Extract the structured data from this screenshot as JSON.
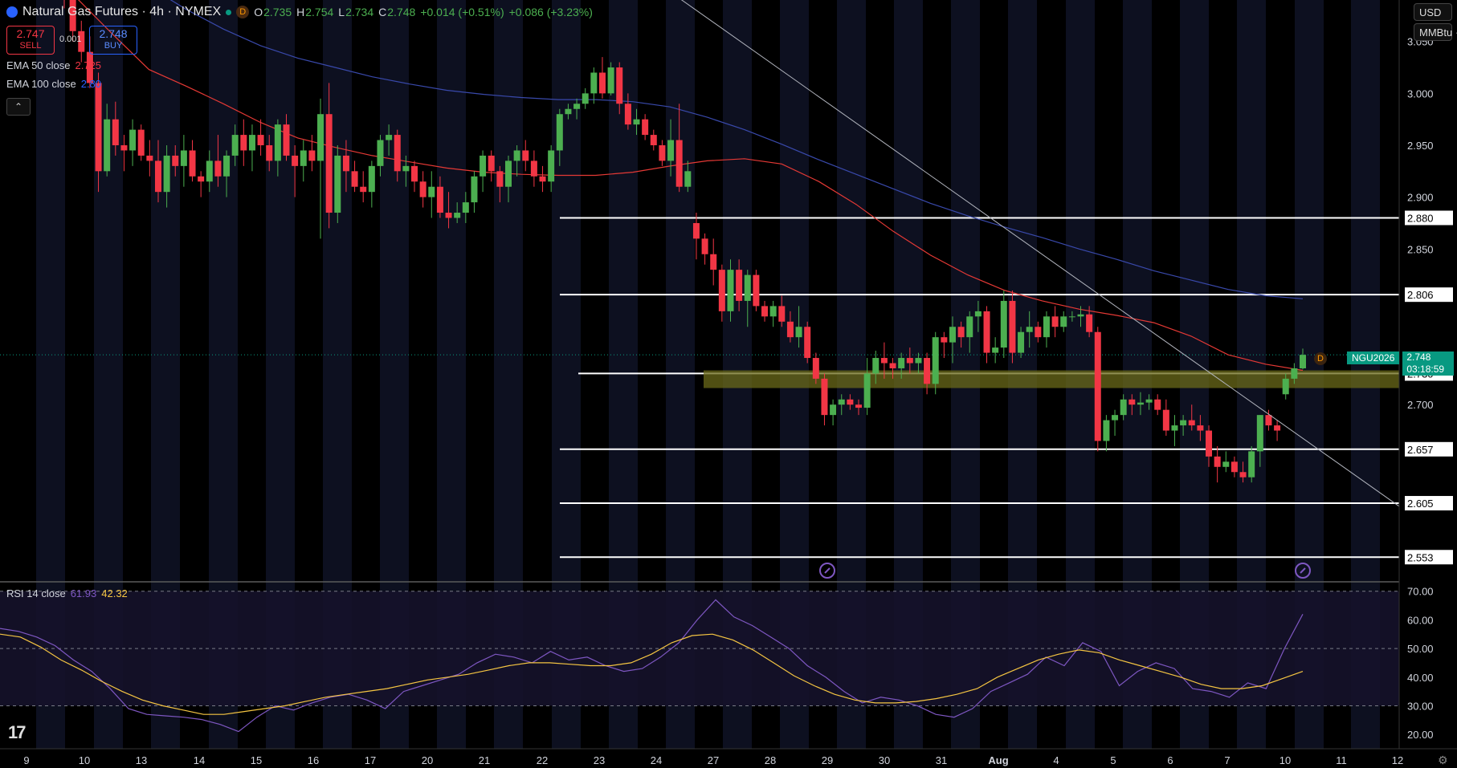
{
  "header": {
    "title": "Natural Gas Futures · 4h · NYMEX",
    "badge": "D",
    "ohlc": {
      "o_label": "O",
      "o": "2.735",
      "h_label": "H",
      "h": "2.754",
      "l_label": "L",
      "l": "2.734",
      "c_label": "C",
      "c": "2.748",
      "change": "+0.014 (+0.51%)",
      "change2": "+0.086 (+3.23%)"
    }
  },
  "trade": {
    "sell_price": "2.747",
    "sell_label": "SELL",
    "spread": "0.001",
    "buy_price": "2.748",
    "buy_label": "BUY"
  },
  "indicators": {
    "ema50_label": "EMA 50 close",
    "ema50_value": "2.725",
    "ema100_label": "EMA 100 close",
    "ema100_value": "2.80",
    "rsi_label": "RSI 14 close",
    "rsi_value": "61.93",
    "rsi_ma_value": "42.32"
  },
  "units": {
    "currency": "USD",
    "unit": "MMBtu"
  },
  "price_tag": {
    "symbol": "NGU2026",
    "price": "2.748",
    "countdown": "03:18:59",
    "marker": "D"
  },
  "colors": {
    "up": "#26a69a",
    "up_body": "#4caf50",
    "down": "#f23645",
    "ema50": "#e53935",
    "ema100": "#3949ab",
    "rsi": "#7e57c2",
    "rsi_ma": "#f5c542",
    "zone": "#6b6a1a"
  },
  "chart_data": [
    {
      "type": "candlestick",
      "title": "Natural Gas Futures · 4h · NYMEX",
      "ylim": [
        2.53,
        3.09
      ],
      "y_ticks": [
        "3.050",
        "3.000",
        "2.950",
        "2.900",
        "2.850",
        "2.700"
      ],
      "x_ticks": [
        "9",
        "10",
        "13",
        "14",
        "15",
        "16",
        "17",
        "20",
        "21",
        "22",
        "23",
        "24",
        "27",
        "28",
        "29",
        "30",
        "31",
        "Aug",
        "4",
        "5",
        "6",
        "7",
        "10",
        "11",
        "12"
      ],
      "horizontal_levels": [
        "2.880",
        "2.806",
        "2.730",
        "2.657",
        "2.605",
        "2.553"
      ],
      "support_zone": [
        2.716,
        2.733
      ],
      "candles": [
        [
          3.125,
          3.14,
          3.082,
          3.095
        ],
        [
          3.095,
          3.105,
          3.05,
          3.06
        ],
        [
          3.06,
          3.07,
          3.03,
          3.04
        ],
        [
          3.04,
          3.055,
          3.005,
          3.01
        ],
        [
          3.01,
          3.02,
          2.905,
          2.925
        ],
        [
          2.925,
          2.99,
          2.92,
          2.975
        ],
        [
          2.975,
          2.992,
          2.94,
          2.95
        ],
        [
          2.95,
          2.96,
          2.925,
          2.945
        ],
        [
          2.945,
          2.975,
          2.93,
          2.965
        ],
        [
          2.965,
          2.97,
          2.935,
          2.94
        ],
        [
          2.94,
          2.955,
          2.92,
          2.935
        ],
        [
          2.935,
          2.955,
          2.895,
          2.905
        ],
        [
          2.905,
          2.95,
          2.89,
          2.94
        ],
        [
          2.94,
          2.95,
          2.92,
          2.93
        ],
        [
          2.93,
          2.96,
          2.91,
          2.945
        ],
        [
          2.945,
          2.955,
          2.915,
          2.92
        ],
        [
          2.92,
          2.925,
          2.9,
          2.915
        ],
        [
          2.915,
          2.945,
          2.905,
          2.935
        ],
        [
          2.935,
          2.96,
          2.91,
          2.92
        ],
        [
          2.92,
          2.945,
          2.9,
          2.94
        ],
        [
          2.94,
          2.97,
          2.93,
          2.96
        ],
        [
          2.96,
          2.975,
          2.93,
          2.945
        ],
        [
          2.945,
          2.97,
          2.925,
          2.96
        ],
        [
          2.96,
          2.975,
          2.94,
          2.95
        ],
        [
          2.95,
          2.96,
          2.925,
          2.935
        ],
        [
          2.935,
          2.975,
          2.92,
          2.97
        ],
        [
          2.97,
          2.98,
          2.935,
          2.94
        ],
        [
          2.94,
          2.95,
          2.9,
          2.93
        ],
        [
          2.93,
          2.955,
          2.915,
          2.945
        ],
        [
          2.945,
          2.96,
          2.925,
          2.935
        ],
        [
          2.935,
          2.995,
          2.86,
          2.98
        ],
        [
          2.98,
          3.01,
          2.87,
          2.885
        ],
        [
          2.885,
          2.95,
          2.875,
          2.94
        ],
        [
          2.94,
          2.955,
          2.905,
          2.925
        ],
        [
          2.925,
          2.935,
          2.905,
          2.91
        ],
        [
          2.91,
          2.925,
          2.895,
          2.905
        ],
        [
          2.905,
          2.935,
          2.89,
          2.93
        ],
        [
          2.93,
          2.96,
          2.92,
          2.955
        ],
        [
          2.955,
          2.97,
          2.94,
          2.96
        ],
        [
          2.96,
          2.965,
          2.915,
          2.925
        ],
        [
          2.925,
          2.94,
          2.91,
          2.93
        ],
        [
          2.93,
          2.935,
          2.905,
          2.915
        ],
        [
          2.915,
          2.925,
          2.89,
          2.9
        ],
        [
          2.9,
          2.925,
          2.88,
          2.91
        ],
        [
          2.91,
          2.92,
          2.88,
          2.885
        ],
        [
          2.885,
          2.905,
          2.87,
          2.88
        ],
        [
          2.88,
          2.895,
          2.875,
          2.885
        ],
        [
          2.885,
          2.905,
          2.875,
          2.895
        ],
        [
          2.895,
          2.925,
          2.885,
          2.92
        ],
        [
          2.92,
          2.945,
          2.905,
          2.94
        ],
        [
          2.94,
          2.945,
          2.915,
          2.925
        ],
        [
          2.925,
          2.93,
          2.895,
          2.91
        ],
        [
          2.91,
          2.94,
          2.895,
          2.935
        ],
        [
          2.935,
          2.95,
          2.92,
          2.945
        ],
        [
          2.945,
          2.955,
          2.925,
          2.935
        ],
        [
          2.935,
          2.945,
          2.91,
          2.92
        ],
        [
          2.92,
          2.93,
          2.905,
          2.915
        ],
        [
          2.915,
          2.95,
          2.905,
          2.945
        ],
        [
          2.945,
          2.985,
          2.93,
          2.98
        ],
        [
          2.98,
          2.99,
          2.975,
          2.985
        ],
        [
          2.985,
          2.995,
          2.975,
          2.99
        ],
        [
          2.99,
          3.005,
          2.985,
          3.0
        ],
        [
          3.0,
          3.025,
          2.99,
          3.02
        ],
        [
          3.02,
          3.035,
          2.995,
          3.0
        ],
        [
          3.0,
          3.03,
          2.998,
          3.025
        ],
        [
          3.025,
          3.03,
          2.98,
          2.99
        ],
        [
          2.99,
          3.0,
          2.965,
          2.97
        ],
        [
          2.97,
          2.985,
          2.96,
          2.975
        ],
        [
          2.975,
          2.98,
          2.955,
          2.96
        ],
        [
          2.96,
          2.965,
          2.945,
          2.95
        ],
        [
          2.95,
          2.955,
          2.93,
          2.935
        ],
        [
          2.935,
          2.975,
          2.92,
          2.955
        ],
        [
          2.955,
          2.99,
          2.905,
          2.91
        ],
        [
          2.91,
          2.935,
          2.905,
          2.925
        ],
        [
          2.875,
          2.885,
          2.84,
          2.86
        ],
        [
          2.86,
          2.865,
          2.835,
          2.845
        ],
        [
          2.845,
          2.86,
          2.815,
          2.83
        ],
        [
          2.83,
          2.835,
          2.78,
          2.79
        ],
        [
          2.79,
          2.84,
          2.78,
          2.83
        ],
        [
          2.83,
          2.84,
          2.79,
          2.8
        ],
        [
          2.8,
          2.83,
          2.775,
          2.825
        ],
        [
          2.825,
          2.83,
          2.79,
          2.795
        ],
        [
          2.795,
          2.8,
          2.78,
          2.785
        ],
        [
          2.785,
          2.8,
          2.775,
          2.795
        ],
        [
          2.795,
          2.805,
          2.775,
          2.78
        ],
        [
          2.78,
          2.79,
          2.76,
          2.765
        ],
        [
          2.765,
          2.795,
          2.755,
          2.775
        ],
        [
          2.775,
          2.78,
          2.74,
          2.745
        ],
        [
          2.745,
          2.75,
          2.72,
          2.725
        ],
        [
          2.725,
          2.73,
          2.68,
          2.69
        ],
        [
          2.69,
          2.705,
          2.68,
          2.7
        ],
        [
          2.7,
          2.71,
          2.69,
          2.705
        ],
        [
          2.705,
          2.71,
          2.695,
          2.7
        ],
        [
          2.7,
          2.705,
          2.69,
          2.697
        ],
        [
          2.697,
          2.745,
          2.69,
          2.73
        ],
        [
          2.73,
          2.752,
          2.72,
          2.745
        ],
        [
          2.745,
          2.76,
          2.725,
          2.74
        ],
        [
          2.74,
          2.745,
          2.725,
          2.735
        ],
        [
          2.735,
          2.75,
          2.725,
          2.745
        ],
        [
          2.745,
          2.755,
          2.73,
          2.74
        ],
        [
          2.74,
          2.75,
          2.73,
          2.745
        ],
        [
          2.745,
          2.75,
          2.71,
          2.72
        ],
        [
          2.72,
          2.77,
          2.71,
          2.765
        ],
        [
          2.765,
          2.77,
          2.745,
          2.76
        ],
        [
          2.76,
          2.785,
          2.74,
          2.775
        ],
        [
          2.775,
          2.78,
          2.755,
          2.765
        ],
        [
          2.765,
          2.79,
          2.75,
          2.785
        ],
        [
          2.785,
          2.8,
          2.77,
          2.79
        ],
        [
          2.79,
          2.795,
          2.74,
          2.75
        ],
        [
          2.75,
          2.765,
          2.74,
          2.755
        ],
        [
          2.755,
          2.81,
          2.745,
          2.8
        ],
        [
          2.8,
          2.81,
          2.74,
          2.75
        ],
        [
          2.75,
          2.775,
          2.745,
          2.77
        ],
        [
          2.77,
          2.79,
          2.755,
          2.775
        ],
        [
          2.775,
          2.78,
          2.76,
          2.765
        ],
        [
          2.765,
          2.79,
          2.755,
          2.785
        ],
        [
          2.785,
          2.795,
          2.765,
          2.775
        ],
        [
          2.775,
          2.79,
          2.77,
          2.785
        ],
        [
          2.785,
          2.79,
          2.78,
          2.785
        ],
        [
          2.785,
          2.795,
          2.775,
          2.787
        ],
        [
          2.787,
          2.795,
          2.765,
          2.77
        ],
        [
          2.77,
          2.775,
          2.655,
          2.665
        ],
        [
          2.665,
          2.69,
          2.655,
          2.685
        ],
        [
          2.685,
          2.695,
          2.67,
          2.69
        ],
        [
          2.69,
          2.71,
          2.685,
          2.705
        ],
        [
          2.705,
          2.71,
          2.69,
          2.7
        ],
        [
          2.7,
          2.712,
          2.69,
          2.702
        ],
        [
          2.702,
          2.71,
          2.695,
          2.705
        ],
        [
          2.705,
          2.71,
          2.69,
          2.695
        ],
        [
          2.695,
          2.705,
          2.67,
          2.675
        ],
        [
          2.675,
          2.69,
          2.66,
          2.68
        ],
        [
          2.68,
          2.69,
          2.67,
          2.685
        ],
        [
          2.685,
          2.7,
          2.675,
          2.68
        ],
        [
          2.68,
          2.69,
          2.665,
          2.675
        ],
        [
          2.675,
          2.68,
          2.64,
          2.65
        ],
        [
          2.65,
          2.66,
          2.625,
          2.64
        ],
        [
          2.64,
          2.655,
          2.635,
          2.645
        ],
        [
          2.645,
          2.65,
          2.63,
          2.635
        ],
        [
          2.635,
          2.645,
          2.625,
          2.63
        ],
        [
          2.63,
          2.66,
          2.625,
          2.655
        ],
        [
          2.655,
          2.69,
          2.64,
          2.69
        ],
        [
          2.69,
          2.695,
          2.675,
          2.68
        ],
        [
          2.68,
          2.685,
          2.665,
          2.675
        ],
        [
          2.71,
          2.73,
          2.705,
          2.725
        ],
        [
          2.725,
          2.74,
          2.72,
          2.735
        ],
        [
          2.735,
          2.754,
          2.734,
          2.748
        ]
      ],
      "ema50": [
        3.17,
        3.126,
        3.094,
        3.058,
        3.023,
        3.007,
        2.99,
        2.972,
        2.957,
        2.948,
        2.94,
        2.934,
        2.928,
        2.924,
        2.922,
        2.921,
        2.921,
        2.924,
        2.93,
        2.935,
        2.937,
        2.932,
        2.915,
        2.893,
        2.867,
        2.844,
        2.825,
        2.81,
        2.8,
        2.792,
        2.786,
        2.779,
        2.766,
        2.748,
        2.739,
        2.733
      ],
      "ema100": [
        3.222,
        3.192,
        3.158,
        3.129,
        3.103,
        3.081,
        3.062,
        3.046,
        3.034,
        3.025,
        3.016,
        3.009,
        3.003,
        2.999,
        2.996,
        2.994,
        2.994,
        2.992,
        2.987,
        2.977,
        2.965,
        2.951,
        2.936,
        2.922,
        2.908,
        2.894,
        2.882,
        2.871,
        2.861,
        2.85,
        2.84,
        2.829,
        2.82,
        2.811,
        2.805,
        2.802
      ],
      "trendline": {
        "from": 3.215,
        "to": 2.602
      }
    },
    {
      "type": "line",
      "title": "RSI 14 close",
      "ylim": [
        15,
        73
      ],
      "y_ticks": [
        "70.00",
        "60.00",
        "50.00",
        "40.00",
        "30.00",
        "20.00"
      ],
      "bands": [
        30,
        50,
        70
      ],
      "series": [
        {
          "name": "RSI 14 close",
          "values": [
            57.0,
            56.0,
            54.0,
            51.0,
            46.0,
            42.0,
            36.0,
            29.0,
            27.0,
            26.5,
            26.0,
            25.2,
            23.5,
            21.0,
            26.0,
            30.0,
            28.5,
            31.0,
            33.0,
            34.0,
            32.0,
            29.0,
            35.0,
            37.0,
            39.0,
            41.0,
            45.0,
            48.0,
            47.0,
            45.0,
            49.0,
            46.0,
            47.0,
            44.0,
            42.0,
            43.0,
            47.0,
            52.0,
            60.0,
            67.0,
            61.0,
            58.0,
            54.0,
            50.0,
            44.0,
            40.0,
            35.0,
            31.0,
            33.0,
            32.0,
            30.0,
            27.0,
            26.0,
            29.0,
            35.0,
            38.0,
            41.0,
            47.0,
            44.0,
            52.0,
            49.0,
            37.0,
            42.0,
            45.0,
            43.0,
            36.0,
            35.0,
            33.0,
            38.0,
            36.0,
            50.0,
            62.0
          ]
        },
        {
          "name": "RSI-based MA",
          "values": [
            55.0,
            54.0,
            50.5,
            46.0,
            42.5,
            38.5,
            35.0,
            32.0,
            30.0,
            28.5,
            27.0,
            27.0,
            28.0,
            29.0,
            30.0,
            31.5,
            33.0,
            34.0,
            35.0,
            36.0,
            37.5,
            39.0,
            40.0,
            41.0,
            42.5,
            44.0,
            45.0,
            45.0,
            44.5,
            44.0,
            44.0,
            45.0,
            48.0,
            52.0,
            54.5,
            55.0,
            53.0,
            49.5,
            45.0,
            40.5,
            37.0,
            34.0,
            32.0,
            31.0,
            31.0,
            31.5,
            32.5,
            34.0,
            36.0,
            40.0,
            43.0,
            46.0,
            48.0,
            49.5,
            48.5,
            46.0,
            44.0,
            42.0,
            40.0,
            37.5,
            36.0,
            36.0,
            37.0,
            39.5,
            42.0
          ]
        }
      ]
    }
  ]
}
